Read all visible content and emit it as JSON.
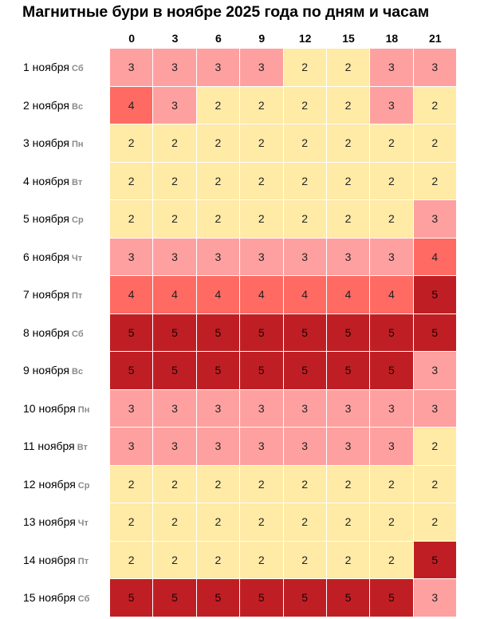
{
  "chart_data": {
    "type": "heatmap",
    "title": "Магнитные бури в ноябре 2025 года по дням и часам",
    "x": [
      "0",
      "3",
      "6",
      "9",
      "12",
      "15",
      "18",
      "21"
    ],
    "y": [
      {
        "day": "1 ноября",
        "weekday": "Сб"
      },
      {
        "day": "2 ноября",
        "weekday": "Вс"
      },
      {
        "day": "3 ноября",
        "weekday": "Пн"
      },
      {
        "day": "4 ноября",
        "weekday": "Вт"
      },
      {
        "day": "5 ноября",
        "weekday": "Ср"
      },
      {
        "day": "6 ноября",
        "weekday": "Чт"
      },
      {
        "day": "7 ноября",
        "weekday": "Пт"
      },
      {
        "day": "8 ноября",
        "weekday": "Сб"
      },
      {
        "day": "9 ноября",
        "weekday": "Вс"
      },
      {
        "day": "10 ноября",
        "weekday": "Пн"
      },
      {
        "day": "11 ноября",
        "weekday": "Вт"
      },
      {
        "day": "12 ноября",
        "weekday": "Ср"
      },
      {
        "day": "13 ноября",
        "weekday": "Чт"
      },
      {
        "day": "14 ноября",
        "weekday": "Пт"
      },
      {
        "day": "15 ноября",
        "weekday": "Сб"
      }
    ],
    "values": [
      [
        3,
        3,
        3,
        3,
        2,
        2,
        3,
        3
      ],
      [
        4,
        3,
        2,
        2,
        2,
        2,
        3,
        2
      ],
      [
        2,
        2,
        2,
        2,
        2,
        2,
        2,
        2
      ],
      [
        2,
        2,
        2,
        2,
        2,
        2,
        2,
        2
      ],
      [
        2,
        2,
        2,
        2,
        2,
        2,
        2,
        3
      ],
      [
        3,
        3,
        3,
        3,
        3,
        3,
        3,
        4
      ],
      [
        4,
        4,
        4,
        4,
        4,
        4,
        4,
        5
      ],
      [
        5,
        5,
        5,
        5,
        5,
        5,
        5,
        5
      ],
      [
        5,
        5,
        5,
        5,
        5,
        5,
        5,
        3
      ],
      [
        3,
        3,
        3,
        3,
        3,
        3,
        3,
        3
      ],
      [
        3,
        3,
        3,
        3,
        3,
        3,
        3,
        2
      ],
      [
        2,
        2,
        2,
        2,
        2,
        2,
        2,
        2
      ],
      [
        2,
        2,
        2,
        2,
        2,
        2,
        2,
        2
      ],
      [
        2,
        2,
        2,
        2,
        2,
        2,
        2,
        5
      ],
      [
        5,
        5,
        5,
        5,
        5,
        5,
        5,
        3
      ]
    ],
    "colors": {
      "2": "#ffeaa6",
      "3": "#ffa0a0",
      "4": "#ff6a63",
      "5": "#bf1f24"
    },
    "xlabel": "",
    "ylabel": "",
    "legend": "none",
    "grid": true
  }
}
